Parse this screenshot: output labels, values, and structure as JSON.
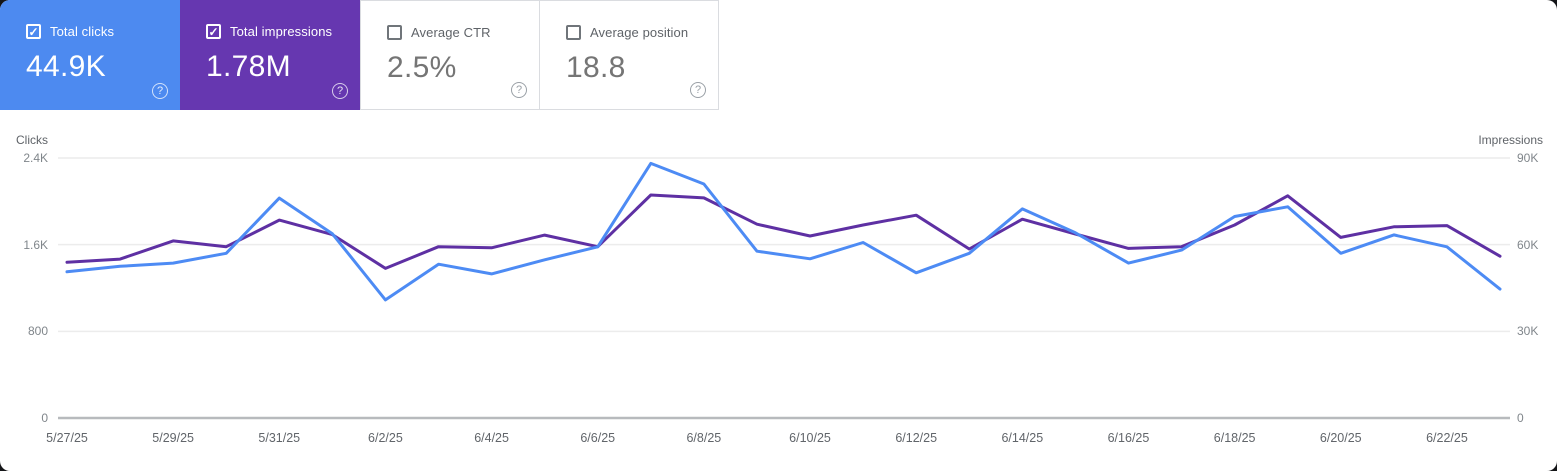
{
  "icons": {
    "checkbox_checked": "✓",
    "help": "?"
  },
  "colors": {
    "card_blue": "#4d8af0",
    "card_purple": "#6637b0",
    "line_clicks": "#4d8bf4",
    "line_impressions": "#5e30a3",
    "gridline": "#ececec",
    "axis_line": "#b7babd"
  },
  "cards": [
    {
      "label": "Total clicks",
      "value": "44.9K",
      "checked": true,
      "bg": "#4d8af0"
    },
    {
      "label": "Total impressions",
      "value": "1.78M",
      "checked": true,
      "bg": "#6637b0"
    },
    {
      "label": "Average CTR",
      "value": "2.5%",
      "checked": false,
      "bg": null
    },
    {
      "label": "Average position",
      "value": "18.8",
      "checked": false,
      "bg": null
    }
  ],
  "chart_data": {
    "type": "line",
    "grid": true,
    "legend_position": "none",
    "x_label_step": 2,
    "left_axis": {
      "title": "Clicks",
      "ticks": [
        "2.4K",
        "1.6K",
        "800",
        "0"
      ],
      "max": 2400,
      "min": 0
    },
    "right_axis": {
      "title": "Impressions",
      "ticks": [
        "90K",
        "60K",
        "30K",
        "0"
      ],
      "max": 90000,
      "min": 0
    },
    "x": [
      "5/27/25",
      "5/28/25",
      "5/29/25",
      "5/30/25",
      "5/31/25",
      "6/1/25",
      "6/2/25",
      "6/3/25",
      "6/4/25",
      "6/5/25",
      "6/6/25",
      "6/7/25",
      "6/8/25",
      "6/9/25",
      "6/10/25",
      "6/11/25",
      "6/12/25",
      "6/13/25",
      "6/14/25",
      "6/15/25",
      "6/16/25",
      "6/17/25",
      "6/18/25",
      "6/19/25",
      "6/20/25",
      "6/21/25",
      "6/22/25",
      "6/23/25"
    ],
    "series": [
      {
        "name": "Total clicks",
        "axis": "left",
        "color": "#4d8bf4",
        "values": [
          1350,
          1400,
          1430,
          1520,
          2030,
          1700,
          1090,
          1420,
          1330,
          1460,
          1580,
          2350,
          2160,
          1540,
          1470,
          1620,
          1340,
          1520,
          1930,
          1710,
          1430,
          1550,
          1860,
          1950,
          1520,
          1690,
          1580,
          1190
        ]
      },
      {
        "name": "Total impressions",
        "axis": "right",
        "color": "#5e30a3",
        "values": [
          53900,
          55000,
          61300,
          59300,
          68500,
          63500,
          51800,
          59300,
          58900,
          63300,
          59300,
          77200,
          76200,
          67100,
          63000,
          66800,
          70200,
          58500,
          68800,
          63700,
          58700,
          59300,
          66800,
          76900,
          62500,
          66200,
          66600,
          56000
        ]
      }
    ]
  }
}
